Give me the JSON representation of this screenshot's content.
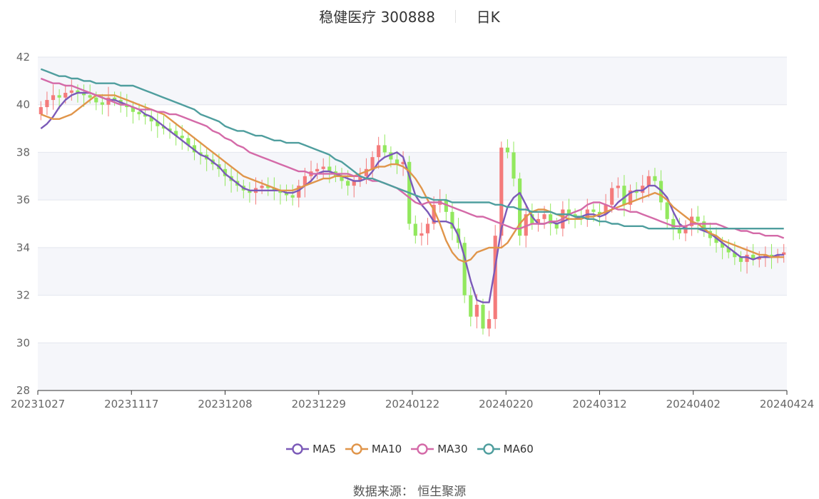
{
  "title": {
    "stock": "稳健医疗 300888",
    "period": "日K"
  },
  "source": "数据来源： 恒生聚源",
  "chart_data": {
    "type": "candlestick",
    "x_tick_labels": [
      "20231027",
      "20231117",
      "20231208",
      "20231229",
      "20240122",
      "20240220",
      "20240312",
      "20240402",
      "20240424"
    ],
    "y_ticks": [
      28,
      30,
      32,
      34,
      36,
      38,
      40,
      42
    ],
    "ylim": [
      28,
      42
    ],
    "colors": {
      "up": "#f47b7b",
      "down": "#92e85e",
      "MA5": "#7b5ab8",
      "MA10": "#e0954a",
      "MA30": "#d46aa8",
      "MA60": "#4f9e9e"
    },
    "legend": [
      "MA5",
      "MA10",
      "MA30",
      "MA60"
    ],
    "legend_position": "bottom",
    "closes": [
      39.9,
      40.2,
      40.4,
      40.3,
      40.5,
      40.6,
      40.5,
      40.4,
      40.3,
      40.1,
      40.0,
      40.3,
      40.2,
      40.0,
      39.9,
      39.7,
      39.6,
      39.5,
      39.3,
      39.1,
      39.0,
      38.9,
      38.7,
      38.6,
      38.3,
      38.0,
      37.9,
      37.7,
      37.5,
      37.3,
      37.0,
      36.8,
      36.6,
      36.4,
      36.3,
      36.5,
      36.6,
      36.5,
      36.4,
      36.3,
      36.2,
      36.1,
      36.6,
      37.0,
      37.2,
      37.3,
      37.4,
      37.2,
      37.0,
      36.8,
      36.6,
      36.8,
      37.0,
      37.3,
      37.8,
      38.3,
      38.0,
      37.7,
      37.5,
      37.6,
      35.0,
      34.5,
      34.6,
      35.0,
      35.8,
      36.0,
      35.5,
      34.8,
      34.2,
      32.0,
      31.1,
      31.6,
      30.6,
      31.0,
      34.5,
      38.2,
      38.0,
      36.9,
      34.5,
      35.4,
      35.0,
      35.2,
      35.4,
      35.0,
      34.8,
      35.6,
      35.4,
      35.3,
      35.2,
      35.6,
      35.5,
      35.4,
      35.8,
      36.5,
      36.6,
      35.8,
      36.4,
      36.3,
      36.6,
      37.0,
      36.8,
      35.9,
      35.2,
      34.8,
      34.6,
      34.9,
      35.3,
      35.1,
      34.7,
      34.4,
      34.2,
      34.0,
      33.8,
      33.6,
      33.4,
      33.7,
      33.5,
      33.6,
      33.7,
      33.6,
      33.7,
      33.8
    ],
    "series": [
      {
        "name": "MA5",
        "values": [
          39.0,
          39.2,
          39.5,
          39.9,
          40.2,
          40.4,
          40.5,
          40.5,
          40.5,
          40.4,
          40.3,
          40.2,
          40.2,
          40.1,
          40.0,
          39.9,
          39.8,
          39.6,
          39.5,
          39.3,
          39.1,
          38.9,
          38.7,
          38.5,
          38.3,
          38.1,
          37.9,
          37.8,
          37.6,
          37.4,
          37.1,
          36.9,
          36.7,
          36.5,
          36.4,
          36.4,
          36.4,
          36.4,
          36.4,
          36.4,
          36.3,
          36.3,
          36.4,
          36.6,
          36.8,
          37.1,
          37.2,
          37.2,
          37.1,
          37.0,
          36.9,
          36.8,
          36.8,
          36.9,
          37.2,
          37.6,
          37.8,
          37.9,
          38.0,
          37.8,
          37.0,
          36.2,
          35.8,
          35.5,
          35.1,
          35.1,
          35.1,
          35.0,
          34.5,
          33.6,
          32.6,
          31.8,
          31.7,
          31.7,
          33.2,
          34.8,
          35.7,
          36.1,
          36.3,
          35.8,
          35.3,
          35.0,
          35.0,
          35.1,
          35.0,
          35.1,
          35.2,
          35.2,
          35.3,
          35.4,
          35.4,
          35.3,
          35.4,
          35.6,
          35.9,
          36.1,
          36.3,
          36.4,
          36.4,
          36.6,
          36.6,
          36.4,
          36.1,
          35.5,
          35.0,
          34.8,
          34.8,
          34.8,
          34.7,
          34.6,
          34.4,
          34.2,
          34.0,
          33.8,
          33.6,
          33.6,
          33.5,
          33.6,
          33.6,
          33.6,
          33.7,
          33.7
        ]
      },
      {
        "name": "MA10",
        "values": [
          39.6,
          39.5,
          39.4,
          39.4,
          39.5,
          39.6,
          39.8,
          40.0,
          40.2,
          40.4,
          40.4,
          40.4,
          40.4,
          40.3,
          40.2,
          40.1,
          40.0,
          39.9,
          39.8,
          39.7,
          39.6,
          39.4,
          39.2,
          39.0,
          38.8,
          38.6,
          38.4,
          38.2,
          38.0,
          37.8,
          37.6,
          37.4,
          37.2,
          37.0,
          36.9,
          36.8,
          36.7,
          36.6,
          36.5,
          36.4,
          36.4,
          36.4,
          36.5,
          36.6,
          36.7,
          36.8,
          36.9,
          36.9,
          37.0,
          37.0,
          37.0,
          37.0,
          37.1,
          37.2,
          37.3,
          37.4,
          37.4,
          37.5,
          37.5,
          37.4,
          37.2,
          36.9,
          36.5,
          36.0,
          35.6,
          35.0,
          34.3,
          33.8,
          33.5,
          33.4,
          33.5,
          33.8,
          33.9,
          34.0,
          34.0,
          34.0,
          34.2,
          34.6,
          35.0,
          35.3,
          35.5,
          35.6,
          35.6,
          35.5,
          35.4,
          35.3,
          35.2,
          35.2,
          35.2,
          35.3,
          35.3,
          35.4,
          35.5,
          35.6,
          35.7,
          35.8,
          35.9,
          36.0,
          36.1,
          36.2,
          36.3,
          36.2,
          36.0,
          35.7,
          35.5,
          35.3,
          35.1,
          35.0,
          34.8,
          34.6,
          34.5,
          34.3,
          34.2,
          34.1,
          34.0,
          33.9,
          33.8,
          33.7,
          33.7,
          33.6,
          33.6,
          33.6
        ]
      },
      {
        "name": "MA30",
        "values": [
          41.1,
          41.0,
          40.9,
          40.9,
          40.8,
          40.8,
          40.7,
          40.6,
          40.5,
          40.4,
          40.3,
          40.2,
          40.1,
          40.0,
          40.0,
          39.9,
          39.8,
          39.8,
          39.8,
          39.7,
          39.7,
          39.6,
          39.6,
          39.5,
          39.4,
          39.3,
          39.2,
          39.1,
          38.9,
          38.8,
          38.6,
          38.5,
          38.3,
          38.2,
          38.0,
          37.9,
          37.8,
          37.7,
          37.6,
          37.5,
          37.4,
          37.3,
          37.2,
          37.2,
          37.1,
          37.1,
          37.1,
          37.1,
          37.1,
          37.1,
          37.1,
          37.0,
          37.0,
          36.9,
          36.8,
          36.8,
          36.7,
          36.6,
          36.5,
          36.3,
          36.1,
          35.9,
          35.8,
          35.9,
          35.9,
          35.9,
          35.8,
          35.7,
          35.6,
          35.5,
          35.4,
          35.3,
          35.3,
          35.2,
          35.1,
          35.0,
          34.9,
          34.8,
          34.8,
          34.9,
          35.0,
          35.0,
          35.0,
          35.1,
          35.1,
          35.2,
          35.4,
          35.5,
          35.6,
          35.8,
          35.9,
          35.9,
          35.8,
          35.7,
          35.6,
          35.6,
          35.5,
          35.5,
          35.4,
          35.3,
          35.2,
          35.1,
          35.0,
          34.9,
          34.9,
          34.9,
          35.0,
          35.0,
          35.0,
          35.0,
          35.0,
          34.9,
          34.8,
          34.8,
          34.7,
          34.7,
          34.6,
          34.6,
          34.5,
          34.5,
          34.5,
          34.4
        ]
      },
      {
        "name": "MA60",
        "values": [
          41.5,
          41.4,
          41.3,
          41.2,
          41.2,
          41.1,
          41.1,
          41.0,
          41.0,
          40.9,
          40.9,
          40.9,
          40.9,
          40.8,
          40.8,
          40.8,
          40.7,
          40.6,
          40.5,
          40.4,
          40.3,
          40.2,
          40.1,
          40.0,
          39.9,
          39.8,
          39.6,
          39.5,
          39.4,
          39.3,
          39.1,
          39.0,
          38.9,
          38.9,
          38.8,
          38.7,
          38.7,
          38.6,
          38.5,
          38.5,
          38.4,
          38.4,
          38.4,
          38.3,
          38.2,
          38.1,
          38.0,
          37.9,
          37.7,
          37.6,
          37.4,
          37.2,
          37.0,
          36.9,
          36.9,
          36.8,
          36.7,
          36.6,
          36.5,
          36.4,
          36.3,
          36.2,
          36.1,
          36.1,
          36.0,
          36.0,
          36.0,
          35.9,
          35.9,
          35.9,
          35.9,
          35.9,
          35.9,
          35.9,
          35.8,
          35.8,
          35.7,
          35.7,
          35.6,
          35.6,
          35.5,
          35.5,
          35.5,
          35.5,
          35.4,
          35.4,
          35.4,
          35.3,
          35.3,
          35.2,
          35.2,
          35.1,
          35.1,
          35.0,
          35.0,
          34.9,
          34.9,
          34.9,
          34.9,
          34.8,
          34.8,
          34.8,
          34.8,
          34.8,
          34.8,
          34.8,
          34.8,
          34.8,
          34.8,
          34.8,
          34.8,
          34.8,
          34.8,
          34.8,
          34.8,
          34.8,
          34.8,
          34.8,
          34.8,
          34.8,
          34.8,
          34.8
        ]
      }
    ]
  }
}
